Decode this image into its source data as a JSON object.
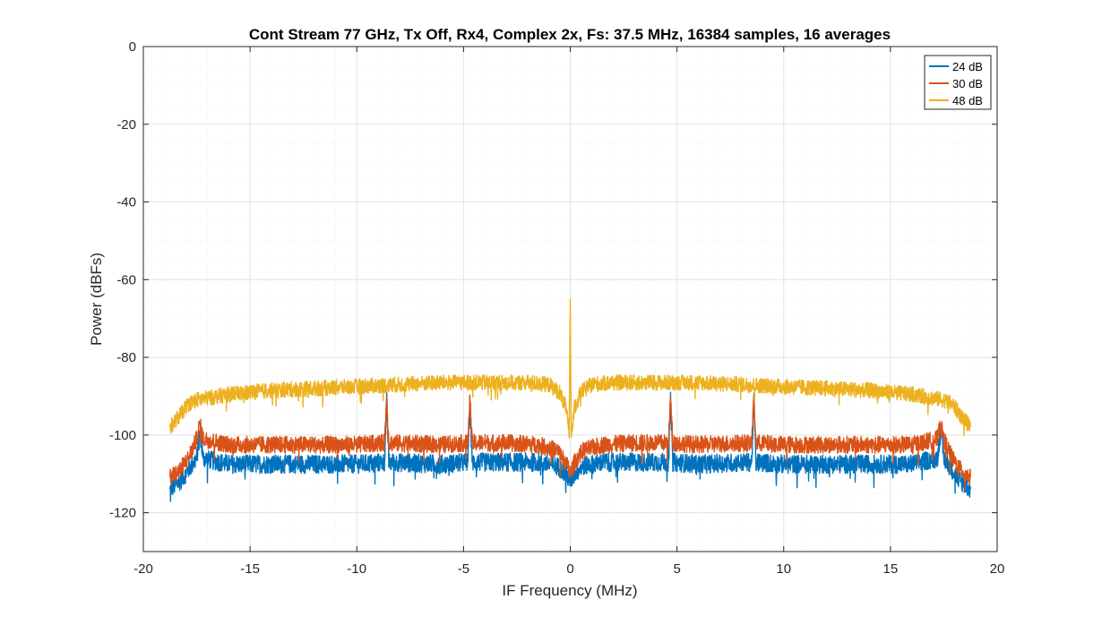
{
  "chart_data": {
    "type": "line",
    "title": "Cont Stream 77 GHz, Tx Off, Rx4, Complex 2x, Fs: 37.5 MHz, 16384 samples, 16 averages",
    "xlabel": "IF Frequency (MHz)",
    "ylabel": "Power (dBFs)",
    "xlim": [
      -20,
      20
    ],
    "ylim": [
      -130,
      0
    ],
    "xticks": [
      -20,
      -15,
      -10,
      -5,
      0,
      5,
      10,
      15,
      20
    ],
    "yticks": [
      0,
      -20,
      -40,
      -60,
      -80,
      -100,
      -120
    ],
    "grid": true,
    "minor_grid": true,
    "legend_position": "top-right",
    "x_range_of_data": [
      -18.75,
      18.75
    ],
    "series": [
      {
        "name": "24 dB",
        "color": "#0072BD",
        "points": [
          [
            -18.75,
            -114
          ],
          [
            -18.3,
            -112
          ],
          [
            -17.9,
            -109
          ],
          [
            -17.5,
            -106
          ],
          [
            -17.35,
            -99
          ],
          [
            -17.2,
            -106
          ],
          [
            -16,
            -107.5
          ],
          [
            -14,
            -107.5
          ],
          [
            -12,
            -107.5
          ],
          [
            -10,
            -107.5
          ],
          [
            -8.7,
            -107
          ],
          [
            -8.6,
            -91
          ],
          [
            -8.5,
            -107
          ],
          [
            -6,
            -107.5
          ],
          [
            -4.8,
            -107
          ],
          [
            -4.7,
            -91
          ],
          [
            -4.6,
            -107
          ],
          [
            -3,
            -107
          ],
          [
            -1.5,
            -107
          ],
          [
            -0.6,
            -108
          ],
          [
            -0.2,
            -110
          ],
          [
            0,
            -112
          ],
          [
            0.2,
            -110
          ],
          [
            0.6,
            -108
          ],
          [
            1.5,
            -107
          ],
          [
            3,
            -107
          ],
          [
            4.6,
            -107
          ],
          [
            4.7,
            -91
          ],
          [
            4.8,
            -107
          ],
          [
            6,
            -107.5
          ],
          [
            8.5,
            -107
          ],
          [
            8.6,
            -91
          ],
          [
            8.7,
            -107
          ],
          [
            10,
            -107.5
          ],
          [
            12,
            -107.5
          ],
          [
            14,
            -107.5
          ],
          [
            16,
            -107.5
          ],
          [
            17.2,
            -106
          ],
          [
            17.35,
            -99
          ],
          [
            17.5,
            -106
          ],
          [
            17.9,
            -109
          ],
          [
            18.3,
            -112
          ],
          [
            18.75,
            -114
          ]
        ]
      },
      {
        "name": "30 dB",
        "color": "#D95319",
        "points": [
          [
            -18.75,
            -111
          ],
          [
            -18.3,
            -109
          ],
          [
            -17.9,
            -106
          ],
          [
            -17.5,
            -101
          ],
          [
            -17.35,
            -97
          ],
          [
            -17.2,
            -101
          ],
          [
            -16,
            -102.5
          ],
          [
            -14,
            -102.5
          ],
          [
            -12,
            -102.5
          ],
          [
            -10,
            -102.5
          ],
          [
            -8.7,
            -102
          ],
          [
            -8.6,
            -90
          ],
          [
            -8.5,
            -102
          ],
          [
            -6,
            -102.5
          ],
          [
            -4.8,
            -102
          ],
          [
            -4.7,
            -90.5
          ],
          [
            -4.6,
            -102
          ],
          [
            -3,
            -102
          ],
          [
            -1.5,
            -102.5
          ],
          [
            -0.6,
            -104
          ],
          [
            -0.2,
            -107
          ],
          [
            0,
            -110
          ],
          [
            0.2,
            -107
          ],
          [
            0.6,
            -104
          ],
          [
            1.5,
            -102.5
          ],
          [
            3,
            -102
          ],
          [
            4.6,
            -102
          ],
          [
            4.7,
            -90.5
          ],
          [
            4.8,
            -102
          ],
          [
            6,
            -102.5
          ],
          [
            8.5,
            -102
          ],
          [
            8.6,
            -90
          ],
          [
            8.7,
            -102
          ],
          [
            10,
            -102.5
          ],
          [
            12,
            -102.5
          ],
          [
            14,
            -102.5
          ],
          [
            16,
            -102.5
          ],
          [
            17.2,
            -101
          ],
          [
            17.35,
            -97
          ],
          [
            17.5,
            -101
          ],
          [
            17.9,
            -106
          ],
          [
            18.3,
            -109
          ],
          [
            18.75,
            -111
          ]
        ]
      },
      {
        "name": "48 dB",
        "color": "#EDB120",
        "points": [
          [
            -18.75,
            -98
          ],
          [
            -18.3,
            -95
          ],
          [
            -17.9,
            -92
          ],
          [
            -17.5,
            -91
          ],
          [
            -16,
            -89.5
          ],
          [
            -14,
            -88.5
          ],
          [
            -12,
            -88
          ],
          [
            -10,
            -87.5
          ],
          [
            -8,
            -87
          ],
          [
            -6,
            -86.5
          ],
          [
            -4,
            -86.5
          ],
          [
            -2,
            -86.5
          ],
          [
            -1,
            -87
          ],
          [
            -0.5,
            -89
          ],
          [
            -0.2,
            -93
          ],
          [
            -0.05,
            -100
          ],
          [
            0,
            -65
          ],
          [
            0.05,
            -100
          ],
          [
            0.2,
            -93
          ],
          [
            0.5,
            -89
          ],
          [
            1,
            -87
          ],
          [
            2,
            -86.5
          ],
          [
            4,
            -86.5
          ],
          [
            6,
            -86.5
          ],
          [
            8,
            -87
          ],
          [
            10,
            -87.5
          ],
          [
            12,
            -88
          ],
          [
            14,
            -88.5
          ],
          [
            16,
            -89.5
          ],
          [
            17.5,
            -91
          ],
          [
            17.9,
            -92
          ],
          [
            18.3,
            -95
          ],
          [
            18.75,
            -98
          ]
        ]
      }
    ]
  }
}
